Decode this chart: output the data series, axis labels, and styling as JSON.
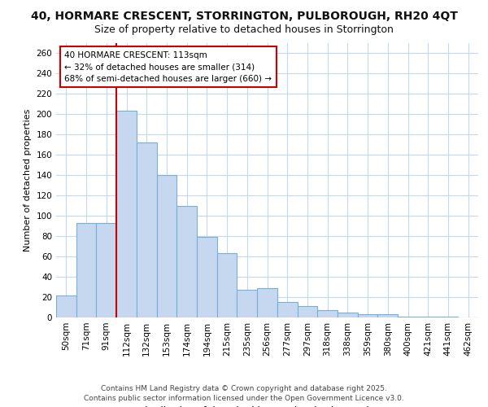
{
  "title_line1": "40, HORMARE CRESCENT, STORRINGTON, PULBOROUGH, RH20 4QT",
  "title_line2": "Size of property relative to detached houses in Storrington",
  "xlabel": "Distribution of detached houses by size in Storrington",
  "ylabel": "Number of detached properties",
  "categories": [
    "50sqm",
    "71sqm",
    "91sqm",
    "112sqm",
    "132sqm",
    "153sqm",
    "174sqm",
    "194sqm",
    "215sqm",
    "235sqm",
    "256sqm",
    "277sqm",
    "297sqm",
    "318sqm",
    "338sqm",
    "359sqm",
    "380sqm",
    "400sqm",
    "421sqm",
    "441sqm",
    "462sqm"
  ],
  "bar_values": [
    22,
    93,
    93,
    203,
    172,
    140,
    110,
    79,
    63,
    27,
    29,
    15,
    11,
    7,
    5,
    3,
    3,
    1,
    1,
    1,
    0
  ],
  "bar_color": "#c5d8f0",
  "bar_edge_color": "#7aafd4",
  "vline_color": "#cc0000",
  "vline_pos": 2.5,
  "annotation_text": "40 HORMARE CRESCENT: 113sqm\n← 32% of detached houses are smaller (314)\n68% of semi-detached houses are larger (660) →",
  "ylim_max": 270,
  "yticks": [
    0,
    20,
    40,
    60,
    80,
    100,
    120,
    140,
    160,
    180,
    200,
    220,
    240,
    260
  ],
  "footer": "Contains HM Land Registry data © Crown copyright and database right 2025.\nContains public sector information licensed under the Open Government Licence v3.0.",
  "background_color": "#ffffff",
  "plot_bg_color": "#ffffff",
  "grid_color": "#c8d8ec",
  "title1_fontsize": 10,
  "title2_fontsize": 9,
  "xlabel_fontsize": 8.5,
  "ylabel_fontsize": 8,
  "tick_fontsize": 7.5,
  "xtick_fontsize": 7.5,
  "footer_fontsize": 6.5,
  "annot_fontsize": 7.5
}
